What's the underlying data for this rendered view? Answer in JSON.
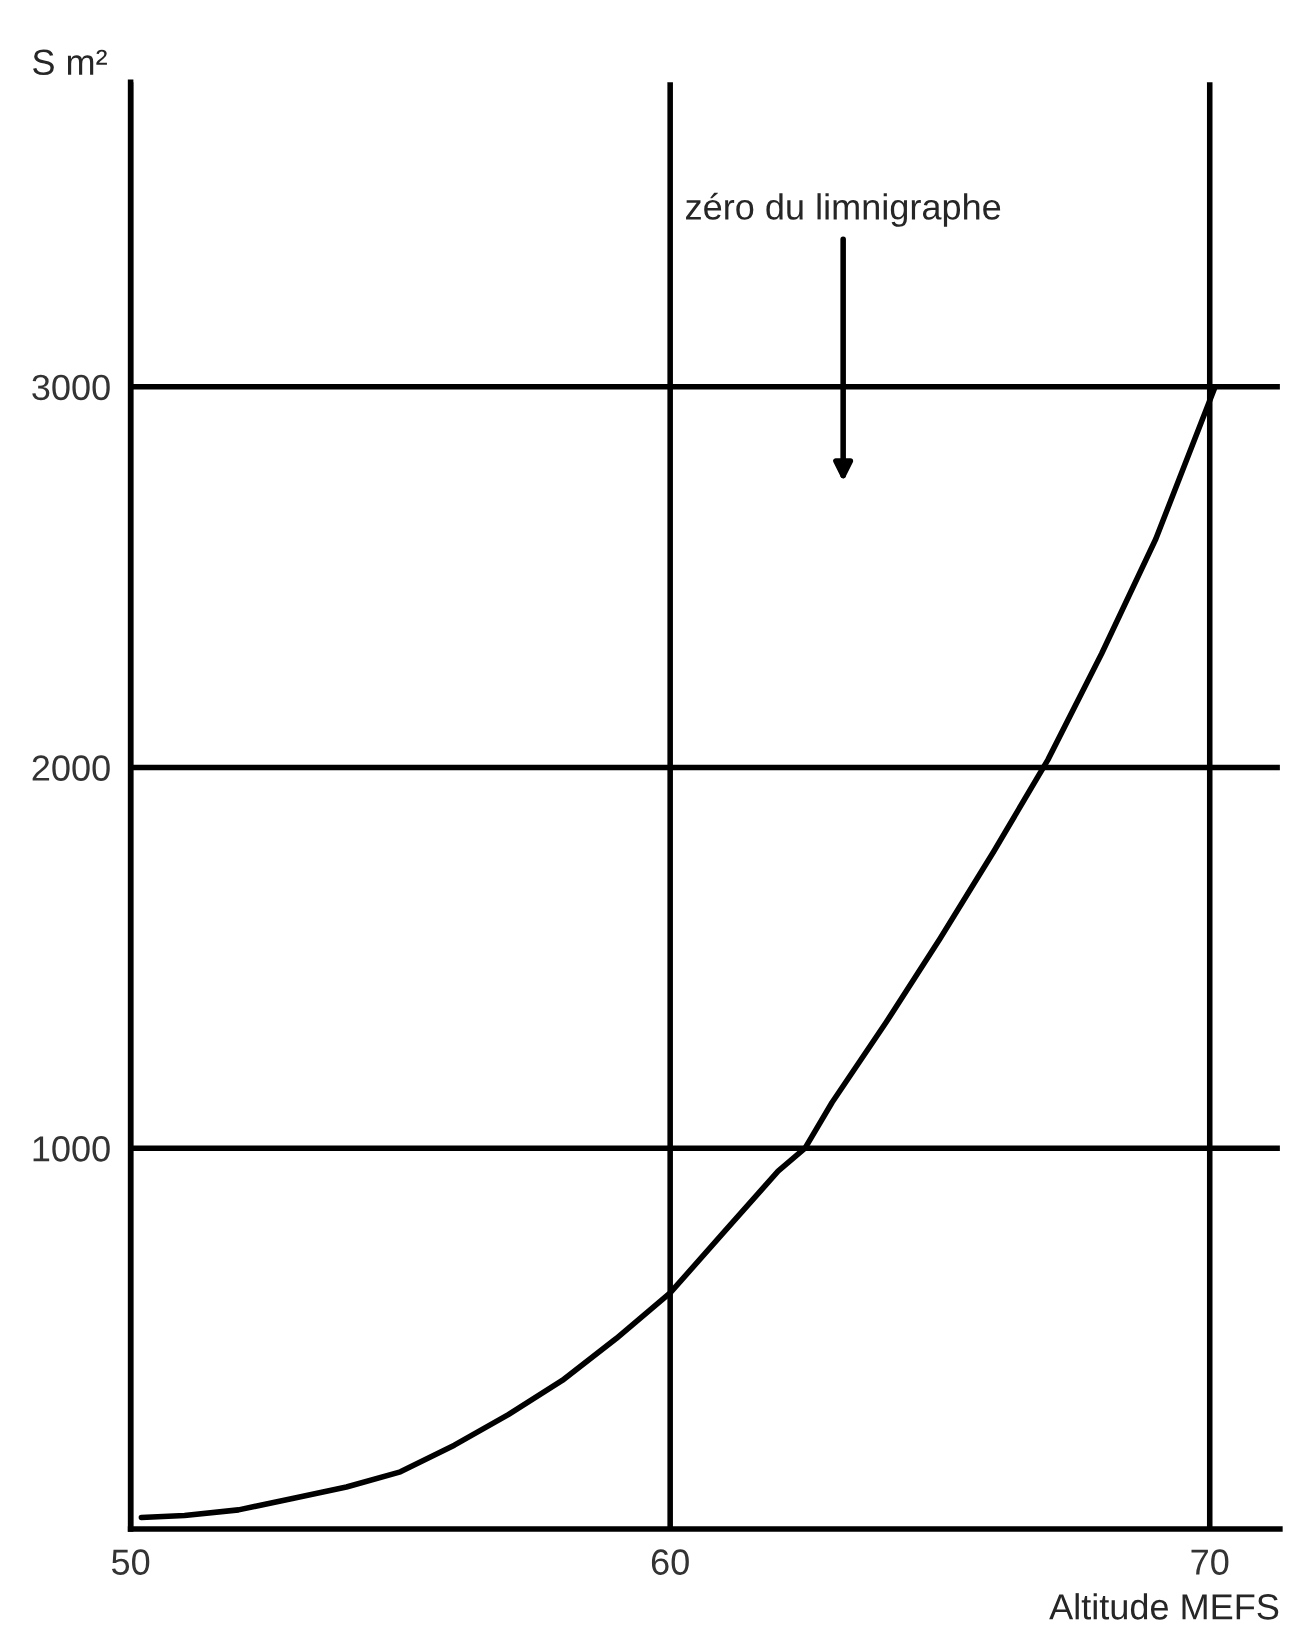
{
  "chart_data": {
    "type": "line",
    "xlabel": "Altitude MEFS",
    "ylabel": "S m²",
    "series": [
      {
        "color": "#000000",
        "x": [
          50.2,
          51,
          52,
          53,
          54,
          55,
          56,
          57,
          58,
          59,
          60,
          61,
          62,
          62.5,
          63,
          64,
          65,
          66,
          67,
          68,
          69,
          70.1
        ],
        "values": [
          30,
          35,
          50,
          80,
          110,
          150,
          220,
          300,
          390,
          500,
          620,
          780,
          940,
          1000,
          1120,
          1330,
          1550,
          1780,
          2020,
          2300,
          2600,
          3000
        ]
      }
    ],
    "xlim": [
      50,
      71.3
    ],
    "ylim": [
      0,
      3800
    ],
    "xticks": [
      50,
      60,
      70
    ],
    "yticks": [
      1000,
      2000,
      3000
    ],
    "grid": true,
    "marker": "none",
    "line_style": "solid",
    "annotations": [
      "zéro du limnigraphe"
    ]
  }
}
